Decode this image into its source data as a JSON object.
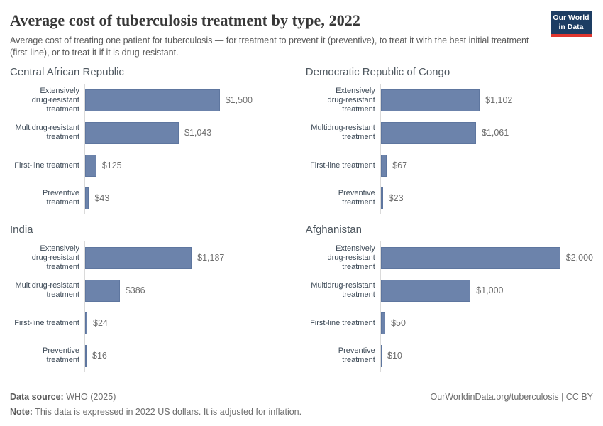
{
  "header": {
    "title": "Average cost of tuberculosis treatment by type, 2022",
    "subtitle": "Average cost of treating one patient for tuberculosis — for treatment to prevent it (preventive), to treat it with the best initial treatment (first-line), or to treat it if it is drug-resistant.",
    "logo": {
      "line1": "Our World",
      "line2": "in Data"
    }
  },
  "chart_data": {
    "type": "bar",
    "orientation": "horizontal",
    "unit": "2022 US dollars",
    "xlim": [
      0,
      2000
    ],
    "grid": false,
    "categories": [
      "Extensively\ndrug-resistant\ntreatment",
      "Multidrug-resistant\ntreatment",
      "First-line treatment",
      "Preventive\ntreatment"
    ],
    "panels": [
      {
        "title": "Central African Republic",
        "values": [
          1500,
          1043,
          125,
          43
        ],
        "value_labels": [
          "$1,500",
          "$1,043",
          "$125",
          "$43"
        ]
      },
      {
        "title": "Democratic Republic of Congo",
        "values": [
          1102,
          1061,
          67,
          23
        ],
        "value_labels": [
          "$1,102",
          "$1,061",
          "$67",
          "$23"
        ]
      },
      {
        "title": "India",
        "values": [
          1187,
          386,
          24,
          16
        ],
        "value_labels": [
          "$1,187",
          "$386",
          "$24",
          "$16"
        ]
      },
      {
        "title": "Afghanistan",
        "values": [
          2000,
          1000,
          50,
          10
        ],
        "value_labels": [
          "$2,000",
          "$1,000",
          "$50",
          "$10"
        ]
      }
    ]
  },
  "footer": {
    "source_label": "Data source:",
    "source_value": " WHO (2025)",
    "note_label": "Note:",
    "note_value": " This data is expressed in 2022 US dollars. It is adjusted for inflation.",
    "link": "OurWorldinData.org/tuberculosis | CC BY"
  },
  "colors": {
    "bar": "#6c83ab",
    "bar_border": "#5e769f",
    "logo_navy": "#1d3d63",
    "logo_red": "#e0362e",
    "axis_line": "#dadada"
  }
}
